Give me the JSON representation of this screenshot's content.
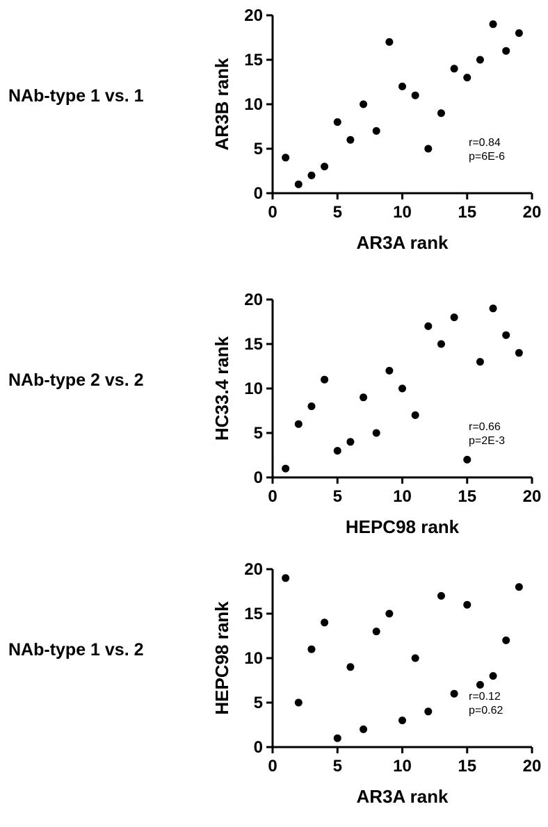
{
  "chart_data": [
    {
      "type": "scatter",
      "row_label": "NAb-type 1 vs. 1",
      "xlabel": "AR3A rank",
      "ylabel": "AR3B rank",
      "xlim": [
        0,
        20
      ],
      "ylim": [
        0,
        20
      ],
      "xticks": [
        0,
        5,
        10,
        15,
        20
      ],
      "yticks": [
        0,
        5,
        10,
        15,
        20
      ],
      "annotation": [
        "r=0.84",
        "p=6E-6"
      ],
      "points": [
        [
          1,
          4
        ],
        [
          2,
          1
        ],
        [
          3,
          2
        ],
        [
          4,
          3
        ],
        [
          5,
          8
        ],
        [
          6,
          6
        ],
        [
          7,
          10
        ],
        [
          8,
          7
        ],
        [
          9,
          17
        ],
        [
          10,
          12
        ],
        [
          11,
          11
        ],
        [
          12,
          5
        ],
        [
          13,
          9
        ],
        [
          14,
          14
        ],
        [
          15,
          13
        ],
        [
          16,
          15
        ],
        [
          17,
          19
        ],
        [
          18,
          16
        ],
        [
          19,
          18
        ]
      ]
    },
    {
      "type": "scatter",
      "row_label": "NAb-type 2 vs. 2",
      "xlabel": "HEPC98 rank",
      "ylabel": "HC33.4 rank",
      "xlim": [
        0,
        20
      ],
      "ylim": [
        0,
        20
      ],
      "xticks": [
        0,
        5,
        10,
        15,
        20
      ],
      "yticks": [
        0,
        5,
        10,
        15,
        20
      ],
      "annotation": [
        "r=0.66",
        "p=2E-3"
      ],
      "points": [
        [
          1,
          1
        ],
        [
          2,
          6
        ],
        [
          3,
          8
        ],
        [
          4,
          11
        ],
        [
          5,
          3
        ],
        [
          6,
          4
        ],
        [
          7,
          9
        ],
        [
          8,
          5
        ],
        [
          9,
          12
        ],
        [
          10,
          10
        ],
        [
          11,
          7
        ],
        [
          12,
          17
        ],
        [
          13,
          15
        ],
        [
          14,
          18
        ],
        [
          15,
          2
        ],
        [
          16,
          13
        ],
        [
          17,
          19
        ],
        [
          18,
          16
        ],
        [
          19,
          14
        ]
      ]
    },
    {
      "type": "scatter",
      "row_label": "NAb-type 1 vs. 2",
      "xlabel": "AR3A rank",
      "ylabel": "HEPC98 rank",
      "xlim": [
        0,
        20
      ],
      "ylim": [
        0,
        20
      ],
      "xticks": [
        0,
        5,
        10,
        15,
        20
      ],
      "yticks": [
        0,
        5,
        10,
        15,
        20
      ],
      "annotation": [
        "r=0.12",
        "p=0.62"
      ],
      "points": [
        [
          1,
          19
        ],
        [
          2,
          5
        ],
        [
          3,
          11
        ],
        [
          4,
          14
        ],
        [
          5,
          1
        ],
        [
          6,
          9
        ],
        [
          7,
          2
        ],
        [
          8,
          13
        ],
        [
          9,
          15
        ],
        [
          10,
          3
        ],
        [
          11,
          10
        ],
        [
          12,
          4
        ],
        [
          13,
          17
        ],
        [
          14,
          6
        ],
        [
          15,
          16
        ],
        [
          16,
          7
        ],
        [
          17,
          8
        ],
        [
          18,
          12
        ],
        [
          19,
          18
        ]
      ]
    }
  ]
}
